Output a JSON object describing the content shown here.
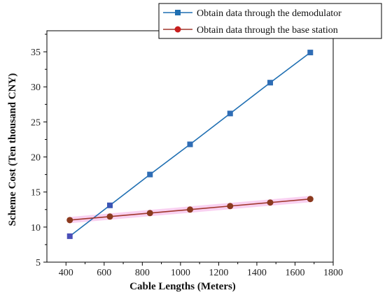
{
  "chart_data": {
    "type": "line",
    "title": "",
    "xlabel": "Cable Lengths (Meters)",
    "ylabel": "Scheme Cost (Ten thousand CNY)",
    "xlim": [
      300,
      1800
    ],
    "ylim": [
      5,
      38
    ],
    "x_ticks": [
      400,
      600,
      800,
      1000,
      1200,
      1400,
      1600,
      1800
    ],
    "y_ticks": [
      5,
      10,
      15,
      20,
      25,
      30,
      35
    ],
    "x": [
      420,
      630,
      840,
      1050,
      1260,
      1470,
      1680
    ],
    "series": [
      {
        "name": "Obtain data through the demodulator",
        "values": [
          8.7,
          13.1,
          17.5,
          21.8,
          26.2,
          30.6,
          34.9
        ],
        "color": "#1f6fb2",
        "marker": "square"
      },
      {
        "name": "Obtain data through the base station",
        "values": [
          11.0,
          11.5,
          12.0,
          12.5,
          13.0,
          13.5,
          14.0
        ],
        "color": "#c0392b",
        "marker": "circle"
      }
    ],
    "grid": false,
    "legend_position": "top-right"
  }
}
